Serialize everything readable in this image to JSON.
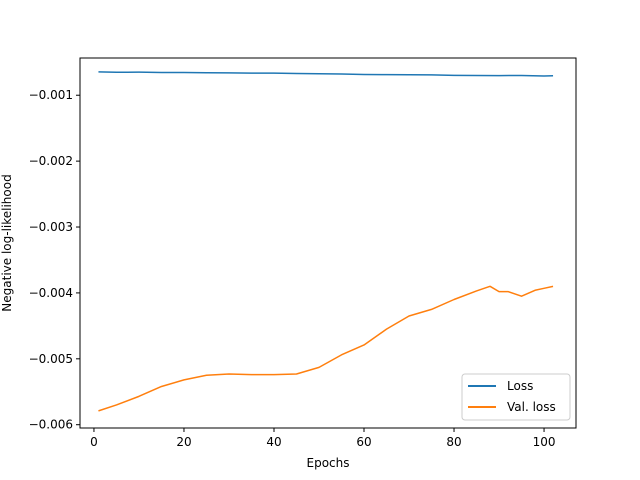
{
  "chart_data": {
    "type": "line",
    "title": "",
    "xlabel": "Epochs",
    "ylabel": "Negative log-likelihood",
    "xlim": [
      -3.1,
      107.1
    ],
    "ylim": [
      -0.00605,
      -0.000435
    ],
    "xticks": [
      0,
      20,
      40,
      60,
      80,
      100
    ],
    "xtick_labels": [
      "0",
      "20",
      "40",
      "60",
      "80",
      "100"
    ],
    "yticks": [
      -0.006,
      -0.005,
      -0.004,
      -0.003,
      -0.002,
      -0.001
    ],
    "ytick_labels": [
      "−0.006",
      "−0.005",
      "−0.004",
      "−0.003",
      "−0.002",
      "−0.001"
    ],
    "grid": false,
    "legend_position": "lower right",
    "series": [
      {
        "name": "Loss",
        "color": "#1f77b4",
        "x": [
          1,
          5,
          10,
          15,
          20,
          25,
          30,
          35,
          40,
          45,
          50,
          55,
          60,
          65,
          70,
          75,
          80,
          85,
          90,
          95,
          100,
          102
        ],
        "y": [
          -0.000645,
          -0.000652,
          -0.00065,
          -0.000655,
          -0.000655,
          -0.000658,
          -0.00066,
          -0.000665,
          -0.000665,
          -0.00067,
          -0.000675,
          -0.000678,
          -0.000685,
          -0.000688,
          -0.00069,
          -0.000692,
          -0.000698,
          -0.0007,
          -0.000702,
          -0.0007,
          -0.000708,
          -0.000705
        ]
      },
      {
        "name": "Val. loss",
        "color": "#ff7f0e",
        "x": [
          1,
          5,
          10,
          15,
          20,
          25,
          30,
          35,
          40,
          45,
          50,
          55,
          60,
          65,
          70,
          75,
          80,
          85,
          88,
          90,
          92,
          95,
          98,
          100,
          102
        ],
        "y": [
          -0.00579,
          -0.0057,
          -0.00557,
          -0.00542,
          -0.00532,
          -0.00525,
          -0.00523,
          -0.00524,
          -0.00524,
          -0.00523,
          -0.00513,
          -0.00494,
          -0.00479,
          -0.00455,
          -0.00435,
          -0.00425,
          -0.0041,
          -0.00397,
          -0.0039,
          -0.00398,
          -0.00398,
          -0.00405,
          -0.00396,
          -0.00393,
          -0.0039
        ]
      }
    ]
  }
}
